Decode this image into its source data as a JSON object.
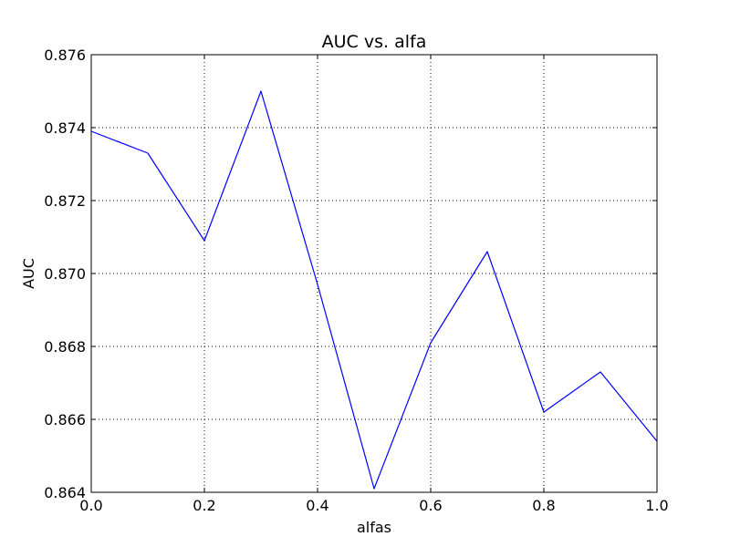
{
  "chart_data": {
    "type": "line",
    "title": "AUC vs. alfa",
    "xlabel": "alfas",
    "ylabel": "AUC",
    "xlim": [
      0.0,
      1.0
    ],
    "ylim": [
      0.864,
      0.876
    ],
    "xticks": [
      "0.0",
      "0.2",
      "0.4",
      "0.6",
      "0.8",
      "1.0"
    ],
    "yticks": [
      "0.864",
      "0.866",
      "0.868",
      "0.870",
      "0.872",
      "0.874",
      "0.876"
    ],
    "grid": true,
    "series": [
      {
        "color": "#0000ff",
        "x": [
          0.0,
          0.1,
          0.2,
          0.3,
          0.4,
          0.5,
          0.6,
          0.7,
          0.8,
          0.9,
          1.0
        ],
        "y": [
          0.8739,
          0.8733,
          0.8709,
          0.875,
          0.8697,
          0.8641,
          0.8681,
          0.8706,
          0.8662,
          0.8673,
          0.8654
        ]
      }
    ]
  }
}
